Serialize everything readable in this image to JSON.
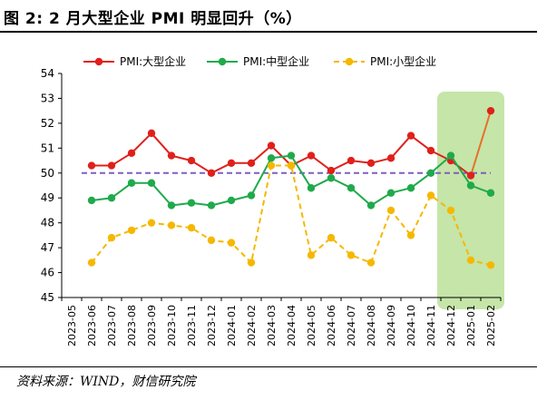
{
  "figure": {
    "title": "图 2:  2 月大型企业 PMI 明显回升（%）",
    "source": "资料来源：WIND，财信研究院"
  },
  "chart_data": {
    "type": "line",
    "x": [
      "2023-05",
      "2023-06",
      "2023-07",
      "2023-08",
      "2023-09",
      "2023-10",
      "2023-11",
      "2023-12",
      "2024-01",
      "2024-02",
      "2024-03",
      "2024-04",
      "2024-05",
      "2024-06",
      "2024-07",
      "2024-08",
      "2024-09",
      "2024-10",
      "2024-11",
      "2024-12",
      "2025-01",
      "2025-02"
    ],
    "x_tick_labels": [
      "2023-05",
      "2023-06",
      "2023-07",
      "2023-08",
      "2023-09",
      "2023-10",
      "2023-11",
      "2023-12",
      "2024-01",
      "2024-02",
      "2024-03",
      "2024-04",
      "2024-05",
      "2024-06",
      "2024-07",
      "2024-08",
      "2024-09",
      "2024-10",
      "2024-11",
      "2024-12",
      "2025-01",
      "2025-02"
    ],
    "ylim": [
      45,
      54
    ],
    "y_ticks": [
      45,
      46,
      47,
      48,
      49,
      50,
      51,
      52,
      53,
      54
    ],
    "y_tick_labels": [
      "45",
      "46",
      "47",
      "48",
      "49",
      "50",
      "51",
      "52",
      "53",
      "54"
    ],
    "grid": false,
    "legend_position": "top",
    "reference_line": {
      "value": 50,
      "color": "#7f5fbf",
      "style": "dashed"
    },
    "highlight": {
      "from": "2024-12",
      "to": "2025-02",
      "color": "#c6e5a8"
    },
    "series": [
      {
        "name": "PMI:大型企业",
        "color": "#e0201b",
        "style": "solid",
        "values": [
          null,
          50.3,
          50.3,
          50.8,
          51.6,
          50.7,
          50.5,
          50.0,
          50.4,
          50.4,
          51.1,
          50.3,
          50.7,
          50.1,
          50.5,
          50.4,
          50.6,
          51.5,
          50.9,
          50.5,
          49.9,
          52.5
        ],
        "trailing_color": "#e8702a"
      },
      {
        "name": "PMI:中型企业",
        "color": "#1faa4b",
        "style": "solid",
        "values": [
          null,
          48.9,
          49.0,
          49.6,
          49.6,
          48.7,
          48.8,
          48.7,
          48.9,
          49.1,
          50.6,
          50.7,
          49.4,
          49.8,
          49.4,
          48.7,
          49.2,
          49.4,
          50.0,
          50.7,
          49.5,
          49.2
        ]
      },
      {
        "name": "PMI:小型企业",
        "color": "#f5b800",
        "style": "dashed",
        "values": [
          null,
          46.4,
          47.4,
          47.7,
          48.0,
          47.9,
          47.8,
          47.3,
          47.2,
          46.4,
          50.3,
          50.3,
          46.7,
          47.4,
          46.7,
          46.4,
          48.5,
          47.5,
          49.1,
          48.5,
          46.5,
          46.3
        ]
      }
    ]
  }
}
